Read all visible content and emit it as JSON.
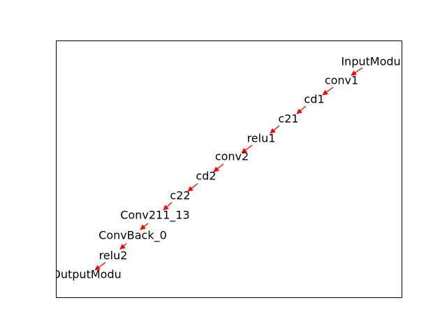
{
  "diagram": {
    "nodes": [
      {
        "id": "n0",
        "label": "InputModu"
      },
      {
        "id": "n1",
        "label": "conv1"
      },
      {
        "id": "n2",
        "label": "cd1"
      },
      {
        "id": "n3",
        "label": "c21"
      },
      {
        "id": "n4",
        "label": "relu1"
      },
      {
        "id": "n5",
        "label": "conv2"
      },
      {
        "id": "n6",
        "label": "cd2"
      },
      {
        "id": "n7",
        "label": "c22"
      },
      {
        "id": "n8",
        "label": "Conv211_13"
      },
      {
        "id": "n9",
        "label": "ConvBack_0"
      },
      {
        "id": "n10",
        "label": "relu2"
      },
      {
        "id": "n11",
        "label": "OutputModu"
      }
    ],
    "edges": [
      {
        "from": "n0",
        "to": "n1"
      },
      {
        "from": "n1",
        "to": "n2"
      },
      {
        "from": "n2",
        "to": "n3"
      },
      {
        "from": "n3",
        "to": "n4"
      },
      {
        "from": "n4",
        "to": "n5"
      },
      {
        "from": "n5",
        "to": "n6"
      },
      {
        "from": "n6",
        "to": "n7"
      },
      {
        "from": "n7",
        "to": "n8"
      },
      {
        "from": "n8",
        "to": "n9"
      },
      {
        "from": "n9",
        "to": "n10"
      },
      {
        "from": "n10",
        "to": "n11"
      }
    ],
    "colors": {
      "edge": "#ff0000",
      "frame": "#000000",
      "text": "#000000",
      "background": "#ffffff"
    }
  }
}
